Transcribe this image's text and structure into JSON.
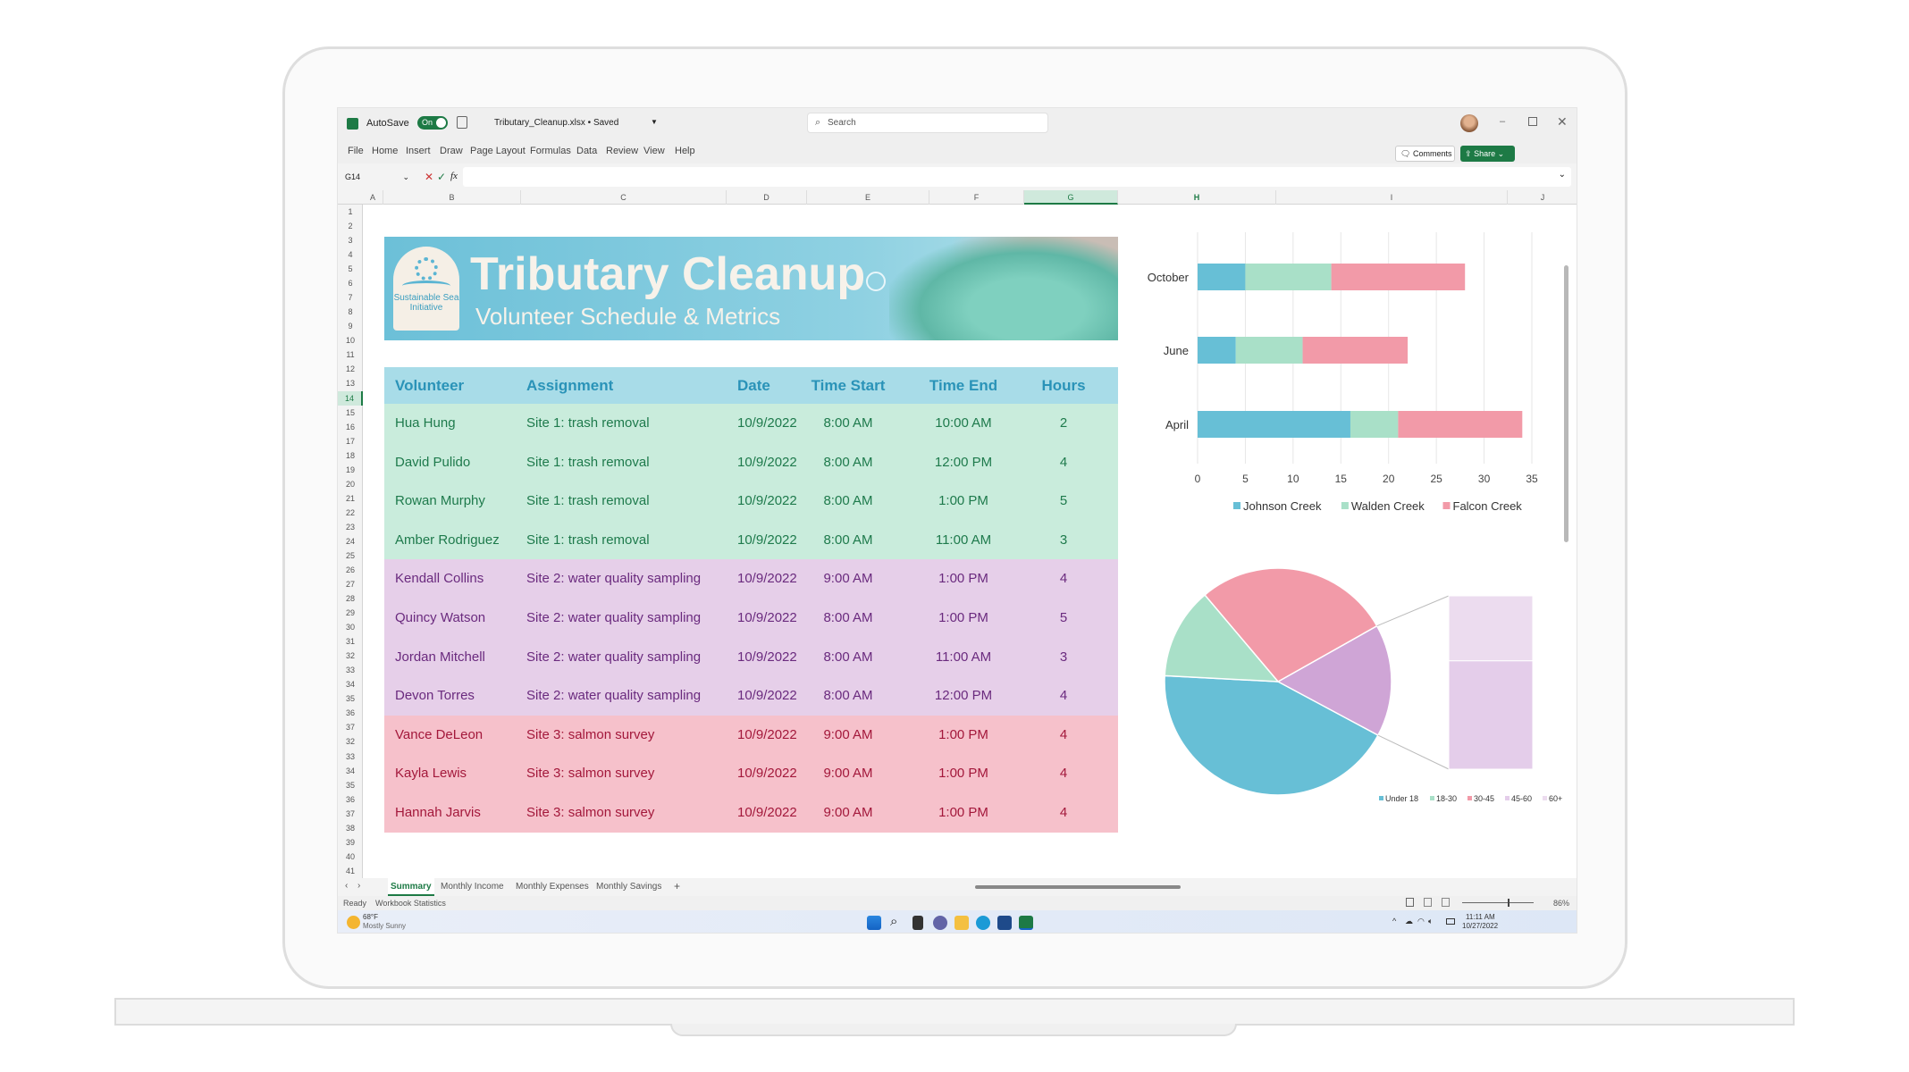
{
  "titlebar": {
    "autosave_label": "AutoSave",
    "autosave_state": "On",
    "filename": "Tributary_Cleanup.xlsx • Saved",
    "search_placeholder": "Search"
  },
  "menu": [
    "File",
    "Home",
    "Insert",
    "Draw",
    "Page Layout",
    "Formulas",
    "Data",
    "Review",
    "View",
    "Help"
  ],
  "buttons": {
    "comments": "Comments",
    "share": "Share"
  },
  "formula": {
    "name_box": "G14",
    "fx": "fx",
    "value": ""
  },
  "columns": [
    "A",
    "B",
    "C",
    "D",
    "E",
    "F",
    "G",
    "H",
    "I",
    "J"
  ],
  "selected_column": "G",
  "rows": [
    "1",
    "2",
    "3",
    "4",
    "5",
    "6",
    "7",
    "8",
    "9",
    "10",
    "11",
    "12",
    "13",
    "14",
    "15",
    "16",
    "17",
    "18",
    "19",
    "20",
    "21",
    "22",
    "23",
    "24",
    "25",
    "26",
    "27",
    "28",
    "29",
    "30",
    "31",
    "32",
    "33",
    "34",
    "35",
    "36",
    "37",
    "32",
    "33",
    "34",
    "35",
    "36",
    "37",
    "38",
    "39",
    "40",
    "41"
  ],
  "selected_row": "14",
  "banner": {
    "title": "Tributary Cleanup",
    "subtitle": "Volunteer Schedule & Metrics",
    "logo_text": "Sustainable Sea Initiative"
  },
  "table": {
    "headers": [
      "Volunteer",
      "Assignment",
      "Date",
      "Time Start",
      "Time End",
      "Hours"
    ],
    "rows": [
      {
        "group": "g1",
        "cells": [
          "Hua Hung",
          "Site 1: trash removal",
          "10/9/2022",
          "8:00 AM",
          "10:00 AM",
          "2"
        ]
      },
      {
        "group": "g1",
        "cells": [
          "David Pulido",
          "Site 1: trash removal",
          "10/9/2022",
          "8:00 AM",
          "12:00 PM",
          "4"
        ]
      },
      {
        "group": "g1",
        "cells": [
          "Rowan Murphy",
          "Site 1: trash removal",
          "10/9/2022",
          "8:00 AM",
          "1:00 PM",
          "5"
        ]
      },
      {
        "group": "g1",
        "cells": [
          "Amber Rodriguez",
          "Site 1: trash removal",
          "10/9/2022",
          "8:00 AM",
          "11:00 AM",
          "3"
        ]
      },
      {
        "group": "g2",
        "cells": [
          "Kendall Collins",
          "Site 2: water quality sampling",
          "10/9/2022",
          "9:00 AM",
          "1:00 PM",
          "4"
        ]
      },
      {
        "group": "g2",
        "cells": [
          "Quincy Watson",
          "Site 2: water quality sampling",
          "10/9/2022",
          "8:00 AM",
          "1:00 PM",
          "5"
        ]
      },
      {
        "group": "g2",
        "cells": [
          "Jordan Mitchell",
          "Site 2: water quality sampling",
          "10/9/2022",
          "8:00 AM",
          "11:00 AM",
          "3"
        ]
      },
      {
        "group": "g2",
        "cells": [
          "Devon Torres",
          "Site 2: water quality sampling",
          "10/9/2022",
          "8:00 AM",
          "12:00 PM",
          "4"
        ]
      },
      {
        "group": "g3",
        "cells": [
          "Vance DeLeon",
          "Site 3: salmon survey",
          "10/9/2022",
          "9:00 AM",
          "1:00 PM",
          "4"
        ]
      },
      {
        "group": "g3",
        "cells": [
          "Kayla Lewis",
          "Site 3: salmon survey",
          "10/9/2022",
          "9:00 AM",
          "1:00 PM",
          "4"
        ]
      },
      {
        "group": "g3",
        "cells": [
          "Hannah Jarvis",
          "Site 3: salmon survey",
          "10/9/2022",
          "9:00 AM",
          "1:00 PM",
          "4"
        ]
      }
    ]
  },
  "chart_data": [
    {
      "type": "bar",
      "orientation": "horizontal",
      "stacked": true,
      "categories": [
        "October",
        "June",
        "April"
      ],
      "series": [
        {
          "name": "Johnson Creek",
          "values": [
            5,
            4,
            16
          ],
          "color": "#67bfd6"
        },
        {
          "name": "Walden Creek",
          "values": [
            9,
            7,
            5
          ],
          "color": "#a9e0c8"
        },
        {
          "name": "Falcon Creek",
          "values": [
            14,
            11,
            13
          ],
          "color": "#f29aa8"
        }
      ],
      "xlim": [
        0,
        35
      ],
      "xticks": [
        0,
        5,
        10,
        15,
        20,
        25,
        30,
        35
      ],
      "grid": true,
      "legend": "bottom"
    },
    {
      "type": "pie",
      "subtype": "bar-of-pie",
      "slices": [
        {
          "name": "Under 18",
          "value": 43,
          "color": "#67bfd6"
        },
        {
          "name": "18-30",
          "value": 13,
          "color": "#a9e0c8"
        },
        {
          "name": "30-45",
          "value": 28,
          "color": "#f29aa8"
        },
        {
          "name": "45-60",
          "value": 10,
          "color": "#e4cdea"
        },
        {
          "name": "60+",
          "value": 6,
          "color": "#ecdcef"
        }
      ],
      "other_color": "#cfa5d6",
      "legend": "bottom-right"
    }
  ],
  "sheet_tabs": [
    "Summary",
    "Monthly Income",
    "Monthly Expenses",
    "Monthly Savings"
  ],
  "active_tab": "Summary",
  "status": {
    "ready": "Ready",
    "stats": "Workbook Statistics",
    "zoom": "86%"
  },
  "taskbar": {
    "temp": "68°F",
    "weather": "Mostly Sunny",
    "time": "11:11 AM",
    "date": "10/27/2022"
  }
}
